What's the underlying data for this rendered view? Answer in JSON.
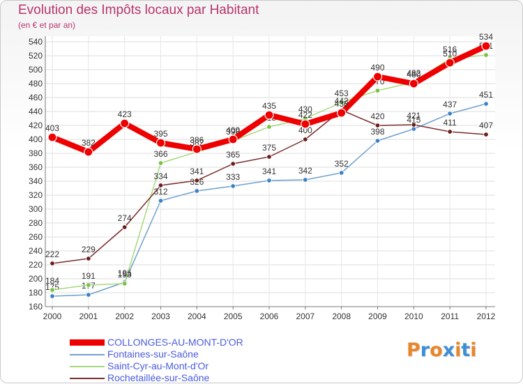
{
  "chart_data": {
    "type": "line",
    "title": "Evolution des Impôts locaux par Habitant",
    "subtitle": "(en € et par an)",
    "xlabel": "",
    "ylabel": "",
    "ylim": [
      160,
      540
    ],
    "y_ticks": [
      160,
      180,
      200,
      220,
      240,
      260,
      280,
      300,
      320,
      340,
      360,
      380,
      400,
      420,
      440,
      460,
      480,
      500,
      520,
      540
    ],
    "grid": true,
    "categories": [
      "2000",
      "2001",
      "2002",
      "2003",
      "2004",
      "2005",
      "2006",
      "2007",
      "2008",
      "2009",
      "2010",
      "2011",
      "2012"
    ],
    "series": [
      {
        "name": "Fontaines-sur-Saône",
        "color": "#6f9fcc",
        "marker": "#3b82c6",
        "values": [
          175,
          177,
          195,
          312,
          326,
          333,
          341,
          342,
          352,
          398,
          415,
          437,
          451
        ]
      },
      {
        "name": "Saint-Cyr-au-Mont-d'Or",
        "color": "#a6d87c",
        "marker": "#7ac142",
        "values": [
          184,
          191,
          193,
          366,
          382,
          398,
          418,
          430,
          453,
          470,
          482,
          516,
          521
        ]
      },
      {
        "name": "Rochetaillée-sur-Saône",
        "color": "#7a2b2b",
        "marker": "#6b1e1e",
        "values": [
          222,
          229,
          274,
          334,
          341,
          365,
          375,
          400,
          442,
          420,
          421,
          411,
          407
        ]
      },
      {
        "name": "COLLONGES-AU-MONT-D'OR",
        "color": "#ee0000",
        "marker": "#ee0000",
        "values": [
          403,
          382,
          423,
          395,
          386,
          400,
          435,
          422,
          438,
          490,
          480,
          510,
          534
        ]
      }
    ],
    "legend": [
      {
        "name": "COLLONGES-AU-MONT-D'OR",
        "color": "#ee0000",
        "thick": true
      },
      {
        "name": "Fontaines-sur-Saône",
        "color": "#6f9fcc",
        "thick": false
      },
      {
        "name": "Saint-Cyr-au-Mont-d'Or",
        "color": "#a6d87c",
        "thick": false
      },
      {
        "name": "Rochetaillée-sur-Saône",
        "color": "#7a2b2b",
        "thick": false
      }
    ],
    "legend_position": "bottom-left",
    "label_color": "#333333",
    "legend_text_color": "#4a5ce0",
    "title_color": "#b8346c"
  },
  "logo": {
    "text": "Proxiti",
    "letters": [
      {
        "ch": "P",
        "color": "#e8862a"
      },
      {
        "ch": "r",
        "color": "#3c8fd6"
      },
      {
        "ch": "o",
        "color": "#e8862a"
      },
      {
        "ch": "x",
        "color": "#3c8fd6"
      },
      {
        "ch": "i",
        "color": "#e8862a"
      },
      {
        "ch": "t",
        "color": "#3c8fd6"
      },
      {
        "ch": "i",
        "color": "#e8862a"
      }
    ]
  }
}
